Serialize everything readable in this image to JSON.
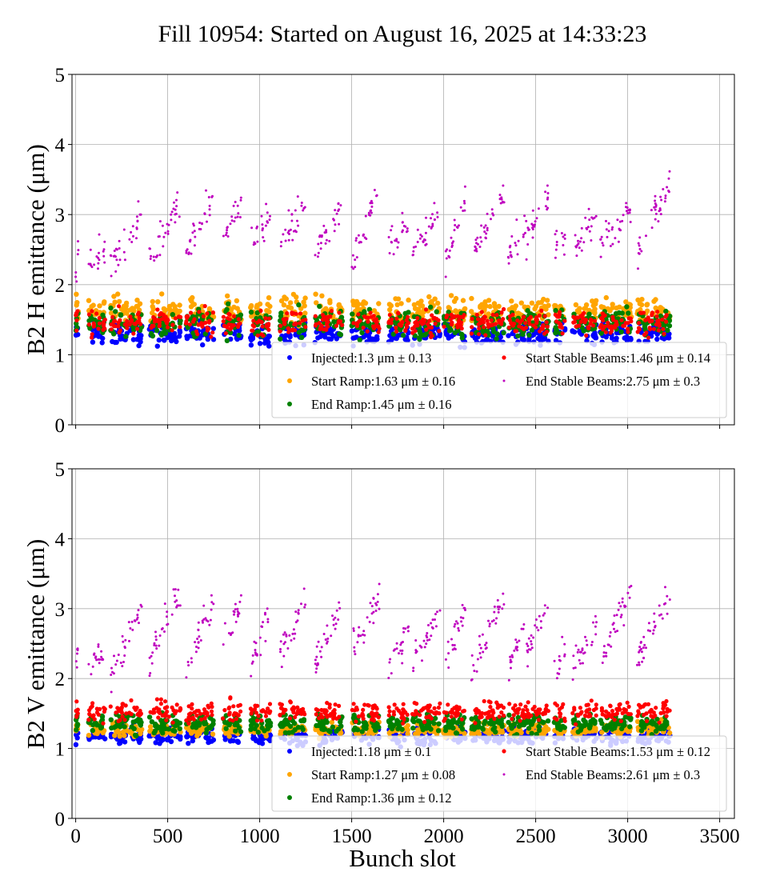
{
  "chart_data": {
    "type": "scatter",
    "title": "Fill 10954: Started on August 16, 2025 at 14:33:23",
    "xlabel": "Bunch slot",
    "xlim": [
      -20,
      3580
    ],
    "xticks": [
      "0",
      "500",
      "1000",
      "1500",
      "2000",
      "2500",
      "3000",
      "3500"
    ],
    "grid": true,
    "legend_placement": "lower-right",
    "series_colors": {
      "injected": "#0000ff",
      "start_ramp": "#ffa500",
      "end_ramp": "#008000",
      "start_stable": "#ff0000",
      "end_stable": "#bf00bf"
    },
    "trains": [
      [
        0,
        15
      ],
      [
        70,
        160
      ],
      [
        190,
        280
      ],
      [
        290,
        360
      ],
      [
        400,
        570
      ],
      [
        600,
        750
      ],
      [
        800,
        900
      ],
      [
        950,
        1060
      ],
      [
        1110,
        1250
      ],
      [
        1300,
        1450
      ],
      [
        1500,
        1650
      ],
      [
        1700,
        1810
      ],
      [
        1830,
        1980
      ],
      [
        2000,
        2120
      ],
      [
        2150,
        2330
      ],
      [
        2350,
        2450
      ],
      [
        2450,
        2570
      ],
      [
        2600,
        2660
      ],
      [
        2700,
        2830
      ],
      [
        2850,
        3020
      ],
      [
        3050,
        3230
      ]
    ],
    "panels": [
      {
        "ylabel": "B2 H emittance (μm)",
        "ylim": [
          0,
          5
        ],
        "yticks": [
          "0",
          "1",
          "2",
          "3",
          "4",
          "5"
        ],
        "series": [
          {
            "key": "injected",
            "name": "Injected:1.3 μm ± 0.13",
            "mean": 1.3,
            "std": 0.13
          },
          {
            "key": "start_ramp",
            "name": "Start Ramp:1.63 μm ± 0.16",
            "mean": 1.63,
            "std": 0.16
          },
          {
            "key": "end_ramp",
            "name": "End Ramp:1.45 μm ± 0.16",
            "mean": 1.45,
            "std": 0.16
          },
          {
            "key": "start_stable",
            "name": "Start Stable Beams:1.46 μm ± 0.14",
            "mean": 1.46,
            "std": 0.14
          },
          {
            "key": "end_stable",
            "name": "End Stable Beams:2.75 μm ± 0.3",
            "mean": 2.75,
            "std": 0.3
          }
        ],
        "end_stable_train_ranges": [
          [
            2.0,
            2.5
          ],
          [
            2.2,
            2.5
          ],
          [
            2.3,
            2.6
          ],
          [
            2.6,
            3.0
          ],
          [
            2.4,
            3.2
          ],
          [
            2.5,
            3.2
          ],
          [
            2.6,
            3.2
          ],
          [
            2.6,
            3.0
          ],
          [
            2.6,
            3.2
          ],
          [
            2.5,
            3.1
          ],
          [
            2.3,
            3.4
          ],
          [
            2.5,
            2.9
          ],
          [
            2.5,
            3.0
          ],
          [
            2.3,
            3.2
          ],
          [
            2.4,
            3.3
          ],
          [
            2.4,
            2.9
          ],
          [
            2.6,
            3.3
          ],
          [
            2.5,
            2.7
          ],
          [
            2.5,
            3.0
          ],
          [
            2.5,
            3.1
          ],
          [
            2.4,
            3.5
          ]
        ]
      },
      {
        "ylabel": "B2 V emittance (μm)",
        "ylim": [
          0,
          5
        ],
        "yticks": [
          "0",
          "1",
          "2",
          "3",
          "4",
          "5"
        ],
        "series": [
          {
            "key": "injected",
            "name": "Injected:1.18 μm ± 0.1",
            "mean": 1.18,
            "std": 0.1
          },
          {
            "key": "start_ramp",
            "name": "Start Ramp:1.27 μm ± 0.08",
            "mean": 1.27,
            "std": 0.08
          },
          {
            "key": "end_ramp",
            "name": "End Ramp:1.36 μm ± 0.12",
            "mean": 1.36,
            "std": 0.12
          },
          {
            "key": "start_stable",
            "name": "Start Stable Beams:1.53 μm ± 0.12",
            "mean": 1.53,
            "std": 0.12
          },
          {
            "key": "end_stable",
            "name": "End Stable Beams:2.61 μm ± 0.3",
            "mean": 2.61,
            "std": 0.3
          }
        ],
        "end_stable_train_ranges": [
          [
            2.0,
            2.6
          ],
          [
            2.1,
            2.4
          ],
          [
            2.0,
            2.6
          ],
          [
            2.6,
            3.0
          ],
          [
            2.3,
            3.2
          ],
          [
            2.2,
            3.1
          ],
          [
            2.5,
            3.1
          ],
          [
            2.2,
            3.0
          ],
          [
            2.3,
            3.1
          ],
          [
            2.2,
            3.1
          ],
          [
            2.5,
            3.1
          ],
          [
            2.2,
            2.6
          ],
          [
            2.2,
            3.0
          ],
          [
            2.3,
            3.0
          ],
          [
            2.1,
            3.2
          ],
          [
            2.1,
            2.9
          ],
          [
            2.3,
            3.2
          ],
          [
            2.1,
            2.4
          ],
          [
            2.1,
            2.8
          ],
          [
            2.2,
            3.3
          ],
          [
            2.2,
            3.3
          ]
        ]
      }
    ]
  }
}
